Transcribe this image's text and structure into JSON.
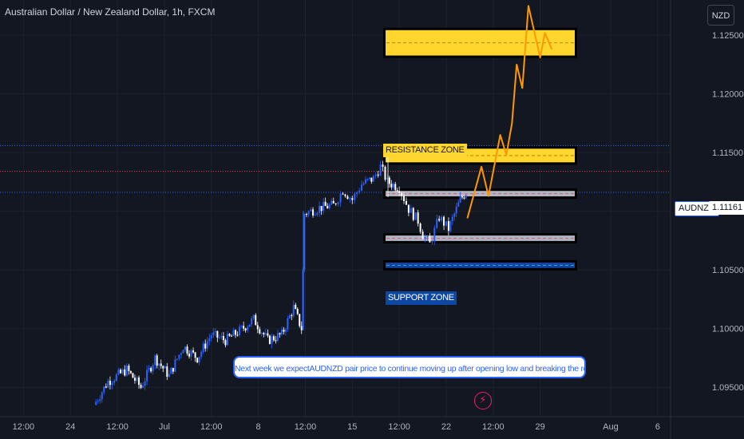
{
  "header": {
    "title": "Australian Dollar / New Zealand Dollar, 1h, FXCM",
    "currency": "NZD"
  },
  "price_axis": {
    "symbol_tag": "AUDNZD",
    "last_price": "1.11161"
  },
  "annotations": {
    "resistance_label": "RESISTANCE ZONE",
    "support_label": "SUPPORT ZONE",
    "note": "Next week we expectAUDNZD pair price to continue moving up after opening low and breaking the resistance above",
    "bolt_icon": "lightning-bolt-icon"
  },
  "colors": {
    "background": "#131722",
    "candle_up": "#2962ff",
    "candle_down": "#ffffff",
    "resistance_zone": "#ffd62e",
    "support_zone": "#0d47a1",
    "projection": "#ff9800",
    "last_price_line": "#2962ff"
  },
  "chart_data": {
    "type": "candlestick",
    "title": "Australian Dollar / New Zealand Dollar, 1h, FXCM",
    "y_tick_labels": [
      "1.12500",
      "1.12000",
      "1.11500",
      "1.11000",
      "1.10500",
      "1.10000",
      "1.09500"
    ],
    "y_ticks": [
      1.125,
      1.12,
      1.115,
      1.11,
      1.105,
      1.1,
      1.095
    ],
    "ylim": [
      1.0925,
      1.128
    ],
    "x_tick_labels": [
      "12:00",
      "24",
      "12:00",
      "Jul",
      "12:00",
      "8",
      "12:00",
      "15",
      "12:00",
      "22",
      "12:00",
      "29",
      "Aug",
      "6"
    ],
    "x_ticks": [
      0.5,
      1.5,
      2.5,
      3.5,
      4.5,
      5.5,
      6.5,
      7.5,
      8.5,
      9.5,
      10.5,
      11.5,
      13.0,
      14.0
    ],
    "x_range": [
      0,
      14.65
    ],
    "price_path": [
      [
        2.0,
        1.0935
      ],
      [
        2.3,
        1.0955
      ],
      [
        2.7,
        1.0965
      ],
      [
        3.0,
        1.095
      ],
      [
        3.3,
        1.0975
      ],
      [
        3.6,
        1.096
      ],
      [
        3.9,
        1.0985
      ],
      [
        4.2,
        1.0975
      ],
      [
        4.5,
        1.0995
      ],
      [
        4.8,
        1.099
      ],
      [
        5.1,
        1.0998
      ],
      [
        5.4,
        1.1008
      ],
      [
        5.7,
        1.099
      ],
      [
        6.0,
        1.0995
      ],
      [
        6.25,
        1.1018
      ],
      [
        6.42,
        1.1
      ],
      [
        6.48,
        1.1098
      ],
      [
        6.8,
        1.1103
      ],
      [
        7.1,
        1.1105
      ],
      [
        7.3,
        1.1118
      ],
      [
        7.5,
        1.111
      ],
      [
        7.7,
        1.1123
      ],
      [
        7.95,
        1.1128
      ],
      [
        8.1,
        1.1138
      ],
      [
        8.25,
        1.1125
      ],
      [
        8.5,
        1.112
      ],
      [
        8.7,
        1.1102
      ],
      [
        8.9,
        1.1092
      ],
      [
        9.0,
        1.108
      ],
      [
        9.15,
        1.1072
      ],
      [
        9.35,
        1.1095
      ],
      [
        9.55,
        1.1085
      ],
      [
        9.8,
        1.111
      ],
      [
        9.92,
        1.1116
      ]
    ],
    "zones": [
      {
        "name": "RESISTANCE ZONE",
        "top": 1.1255,
        "bottom": 1.1232,
        "color": "#ffd62e"
      },
      {
        "name": "RESISTANCE ZONE",
        "top": 1.1154,
        "bottom": 1.1141,
        "color": "#ffd62e"
      },
      {
        "name": "",
        "top": 1.1118,
        "bottom": 1.1112,
        "color": "#b0b3c0"
      },
      {
        "name": "",
        "top": 1.108,
        "bottom": 1.1074,
        "color": "#b0b3c0"
      },
      {
        "name": "SUPPORT ZONE",
        "top": 1.1057,
        "bottom": 1.1051,
        "color": "#0d47a1"
      }
    ],
    "horizontal_lines": [
      {
        "price": 1.1156,
        "style": "dotted",
        "color": "#2962ff"
      },
      {
        "price": 1.1134,
        "style": "dotted",
        "color": "#f23645"
      },
      {
        "price": 1.11161,
        "style": "dotted",
        "color": "#2962ff"
      }
    ],
    "projection_path": [
      [
        9.95,
        1.1094
      ],
      [
        10.25,
        1.1138
      ],
      [
        10.4,
        1.1113
      ],
      [
        10.65,
        1.1165
      ],
      [
        10.78,
        1.1148
      ],
      [
        10.9,
        1.1175
      ],
      [
        11.0,
        1.1225
      ],
      [
        11.12,
        1.1205
      ],
      [
        11.25,
        1.1275
      ],
      [
        11.5,
        1.1231
      ],
      [
        11.6,
        1.1252
      ],
      [
        11.75,
        1.1238
      ]
    ]
  }
}
